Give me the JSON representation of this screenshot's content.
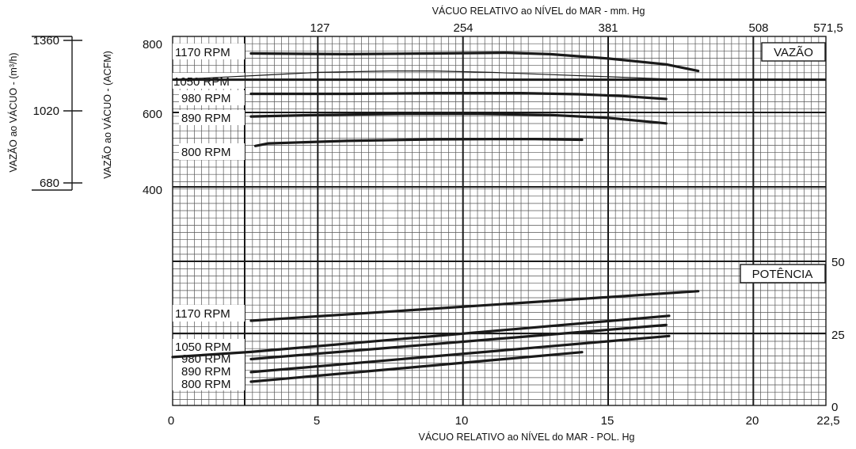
{
  "chart_data": {
    "type": "line",
    "title": "",
    "x_axis_bottom": {
      "label": "VÁCUO RELATIVO ao NÍVEL do MAR - POL. Hg",
      "range": [
        0,
        22.5
      ],
      "ticks": [
        "0",
        "5",
        "10",
        "15",
        "20",
        "22,5"
      ]
    },
    "x_axis_top": {
      "label": "VÁCUO RELATIVO ao NÍVEL do MAR - mm. Hg",
      "ticks": [
        "127",
        "254",
        "381",
        "508",
        "571,5"
      ]
    },
    "y_axis_flow_acfm": {
      "label": "VAZÃO ao VÁCUO - (ACFM)",
      "ticks": [
        "800",
        "600",
        "400"
      ]
    },
    "y_axis_flow_m3h": {
      "label": "VAZÃO ao VÁCUO - (m³/h)",
      "ticks": [
        "1360",
        "1020",
        "680"
      ]
    },
    "y_axis_power": {
      "label": "",
      "ticks": [
        "50",
        "25",
        "0"
      ]
    },
    "panels": {
      "flow": "VAZÃO",
      "power": "POTÊNCIA"
    },
    "grid": true,
    "flow_series": [
      {
        "name": "1170 RPM",
        "x": [
          2.7,
          6,
          9,
          11.5,
          13,
          15,
          17,
          18.1
        ],
        "y": [
          762,
          760,
          762,
          764,
          760,
          748,
          732,
          714
        ]
      },
      {
        "name": "1050 RPM",
        "x": [
          0,
          3,
          5,
          7.5,
          9,
          11,
          13,
          15,
          17,
          18.1
        ],
        "y": [
          690,
          702,
          710,
          714,
          714,
          710,
          704,
          698,
          692,
          690
        ]
      },
      {
        "name": "980 RPM",
        "x": [
          2.7,
          6,
          9,
          12,
          14,
          15.5,
          17
        ],
        "y": [
          651,
          651,
          653,
          653,
          650,
          645,
          637
        ]
      },
      {
        "name": "890 RPM",
        "x": [
          2.7,
          5,
          8,
          10.5,
          13,
          15,
          17
        ],
        "y": [
          589,
          593,
          596,
          596,
          593,
          585,
          570
        ]
      },
      {
        "name": "800 RPM",
        "x": [
          2.85,
          3.3,
          6,
          9,
          11,
          12.5,
          14.1
        ],
        "y": [
          508,
          515,
          522,
          526,
          527,
          527,
          525
        ]
      }
    ],
    "power_series": [
      {
        "name": "1170 RPM",
        "x": [
          2.7,
          18.1
        ],
        "y": [
          29.6,
          39.8
        ]
      },
      {
        "name": "1050 RPM",
        "x": [
          0,
          2.7,
          17.1
        ],
        "y": [
          17,
          18.8,
          31.3
        ]
      },
      {
        "name": "980 RPM",
        "x": [
          2.7,
          17
        ],
        "y": [
          16.3,
          28.1
        ]
      },
      {
        "name": "890 RPM",
        "x": [
          2.7,
          17.1
        ],
        "y": [
          11.8,
          24.3
        ]
      },
      {
        "name": "800 RPM",
        "x": [
          2.7,
          14.1
        ],
        "y": [
          8.5,
          18.7
        ]
      }
    ],
    "flow_extra_line": {
      "x": [
        0,
        22.5
      ],
      "y": [
        690,
        690
      ]
    },
    "colors": {
      "line": "#1a1a1a",
      "grid": "#555555",
      "background": "#ffffff"
    }
  }
}
